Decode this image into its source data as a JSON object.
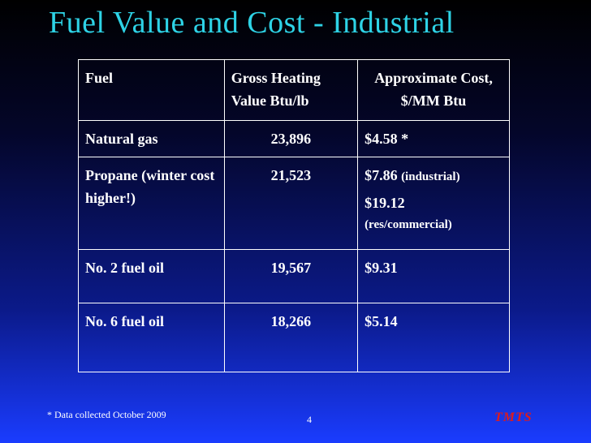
{
  "title": "Fuel Value and Cost - Industrial",
  "table": {
    "headers": {
      "fuel": "Fuel",
      "heating": "Gross Heating Value Btu/lb",
      "cost": "Approximate Cost, $/MM Btu"
    },
    "rows": [
      {
        "fuel": "Natural gas",
        "heating": "23,896",
        "cost": "$4.58 *"
      },
      {
        "fuel": "Propane (winter cost higher!)",
        "heating": "21,523",
        "cost_industrial": "$7.86",
        "cost_industrial_note": "(industrial)",
        "cost_res": "$19.12",
        "cost_res_note": "(res/commercial)"
      },
      {
        "fuel": "No. 2 fuel oil",
        "heating": "19,567",
        "cost": "$9.31"
      },
      {
        "fuel": "No. 6 fuel oil",
        "heating": "18,266",
        "cost": "$5.14"
      }
    ]
  },
  "footer": {
    "footnote": "* Data collected October 2009",
    "page_number": "4",
    "logo": "TMTS"
  },
  "colors": {
    "title": "#2ed3e6",
    "text": "#ffffff",
    "logo": "#e01b1b",
    "background_top": "#000000",
    "background_bottom": "#1a3cff"
  }
}
